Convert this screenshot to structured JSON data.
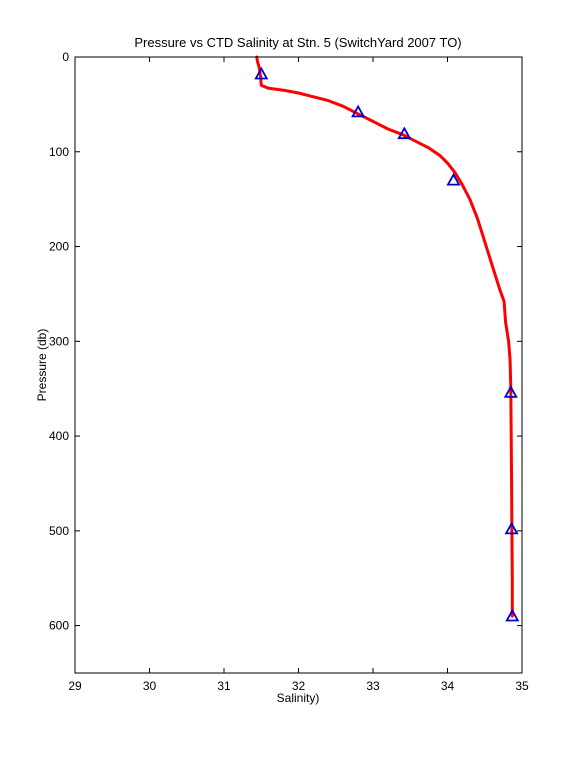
{
  "chart_data": {
    "type": "line",
    "title": "Pressure vs CTD Salinity at Stn. 5 (SwitchYard 2007 TO)",
    "xlabel": "Salinity)",
    "ylabel": "Pressure (db)",
    "xlim": [
      29,
      35
    ],
    "ylim": [
      0,
      650
    ],
    "y_reversed": true,
    "xticks": [
      29,
      30,
      31,
      32,
      33,
      34,
      35
    ],
    "yticks": [
      0,
      100,
      200,
      300,
      400,
      500,
      600
    ],
    "grid": false,
    "legend": "none",
    "series": [
      {
        "style": "line",
        "color": "#ff0000",
        "x": [
          31.44,
          31.45,
          31.47,
          31.48,
          31.49,
          31.5,
          31.6,
          31.8,
          32.0,
          32.2,
          32.4,
          32.6,
          32.8,
          33.0,
          33.2,
          33.4,
          33.6,
          33.75,
          33.9,
          34.0,
          34.1,
          34.2,
          34.3,
          34.4,
          34.5,
          34.6,
          34.7,
          34.76,
          34.77,
          34.78,
          34.8,
          34.82,
          34.84,
          34.85,
          34.855,
          34.86,
          34.865,
          34.87,
          34.87
        ],
        "y": [
          0,
          5,
          10,
          15,
          20,
          30,
          33,
          35,
          38,
          42,
          46,
          52,
          60,
          68,
          76,
          82,
          90,
          96,
          104,
          112,
          122,
          135,
          150,
          170,
          195,
          220,
          245,
          258,
          270,
          280,
          290,
          300,
          320,
          350,
          400,
          450,
          500,
          550,
          590
        ]
      },
      {
        "style": "marker",
        "marker": "triangle",
        "color": "#0000cc",
        "x": [
          31.5,
          32.8,
          33.42,
          34.08,
          34.85,
          34.86,
          34.87
        ],
        "y": [
          18,
          58,
          81,
          130,
          354,
          498,
          590
        ]
      }
    ]
  }
}
